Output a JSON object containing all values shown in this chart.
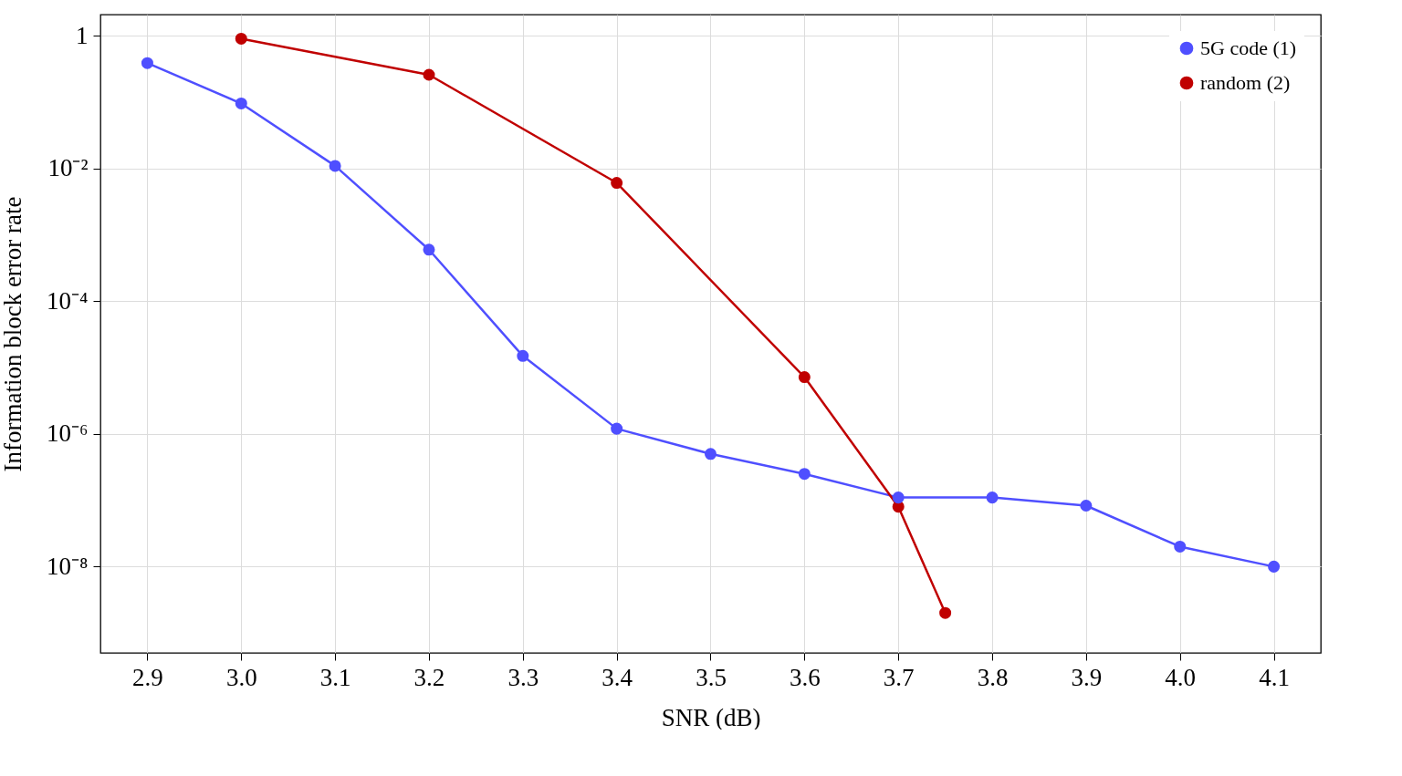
{
  "chart_data": {
    "type": "line",
    "xlabel": "SNR (dB)",
    "ylabel": "Information block error rate",
    "log": "y",
    "grid": true,
    "legend": "top right",
    "marker": "circle",
    "line_style": "solid",
    "xlim": [
      2.85,
      4.15
    ],
    "xticks": [
      2.9,
      {
        "value": 3,
        "label": "3.0"
      },
      3.1,
      3.2,
      3.3,
      3.4,
      3.5,
      3.6,
      3.7,
      3.8,
      3.9,
      {
        "value": 4,
        "label": "4.0"
      },
      4.1
    ],
    "ylim": [
      5e-10,
      2.1
    ],
    "yticks": [
      1,
      {
        "value": 0.01,
        "label": "10⁻²"
      },
      {
        "value": 0.0001,
        "label": "10⁻⁴"
      },
      {
        "value": 1e-06,
        "label": "10⁻⁶"
      },
      {
        "value": 1e-08,
        "label": "10⁻⁸"
      }
    ],
    "series": [
      {
        "name": "5G code (1)",
        "color": "#4f4fff",
        "x": [
          2.9,
          3.0,
          3.1,
          3.2,
          3.3,
          3.4,
          3.5,
          3.6,
          3.7,
          3.8,
          3.9,
          4.0,
          4.1
        ],
        "values": [
          0.39,
          0.096,
          0.011,
          0.0006,
          1.5e-05,
          1.2e-06,
          5e-07,
          2.5e-07,
          1.1e-07,
          1.1e-07,
          8.3e-08,
          2e-08,
          1e-08
        ]
      },
      {
        "name": "random (2)",
        "color": "#c00000",
        "x": [
          3.0,
          3.2,
          3.4,
          3.6,
          3.7,
          3.75
        ],
        "values": [
          0.91,
          0.26,
          0.0061,
          7.2e-06,
          8e-08,
          2e-09
        ]
      }
    ]
  }
}
